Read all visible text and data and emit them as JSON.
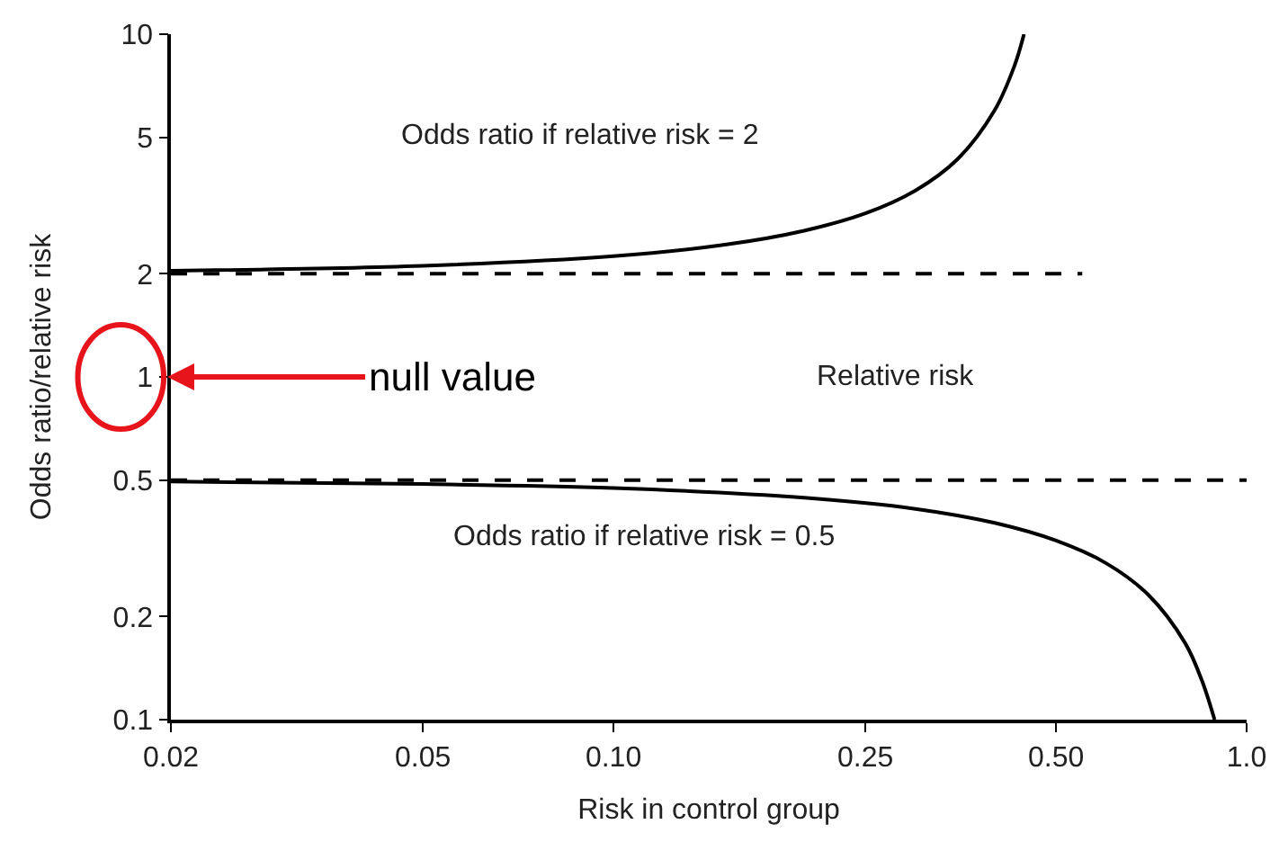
{
  "chart_data": {
    "type": "line",
    "xlabel": "Risk in control group",
    "ylabel": "Odds ratio/relative risk",
    "log": "xy",
    "xlim": [
      0.02,
      1.0
    ],
    "xticks": [
      0.02,
      0.05,
      {
        "value": 0.1,
        "label": "0.10"
      },
      0.25,
      {
        "value": 0.5,
        "label": "0.50"
      },
      {
        "value": 1.0,
        "label": "1.0"
      }
    ],
    "ylim": [
      0.1,
      10
    ],
    "yticks": [
      0.1,
      0.2,
      0.5,
      1,
      2,
      5,
      10
    ],
    "series": [
      {
        "color": "#000000",
        "line_style": "solid",
        "x": [
          0.02,
          0.05,
          0.1,
          0.15,
          0.2,
          0.25,
          0.3,
          0.35,
          0.4,
          0.43,
          0.445
        ],
        "values": [
          2.04,
          2.11,
          2.25,
          2.43,
          2.67,
          3.0,
          3.5,
          4.33,
          6.0,
          8.1,
          10
        ]
      },
      {
        "color": "#000000",
        "line_style": "solid",
        "x": [
          0.02,
          0.05,
          0.1,
          0.2,
          0.3,
          0.4,
          0.5,
          0.6,
          0.7,
          0.8,
          0.85,
          0.89
        ],
        "values": [
          0.495,
          0.487,
          0.474,
          0.444,
          0.412,
          0.375,
          0.333,
          0.286,
          0.231,
          0.167,
          0.13,
          0.1
        ]
      },
      {
        "color": "#000000",
        "line_style": "dashed",
        "x": [
          0.02,
          0.55
        ],
        "values": [
          2,
          2
        ]
      },
      {
        "color": "#000000",
        "line_style": "dashed",
        "x": [
          0.02,
          1.0
        ],
        "values": [
          0.5,
          0.5
        ]
      }
    ],
    "annotations": [
      "Odds ratio if relative risk = 2",
      "Relative risk",
      "Odds ratio if relative risk = 0.5",
      "null value"
    ]
  }
}
